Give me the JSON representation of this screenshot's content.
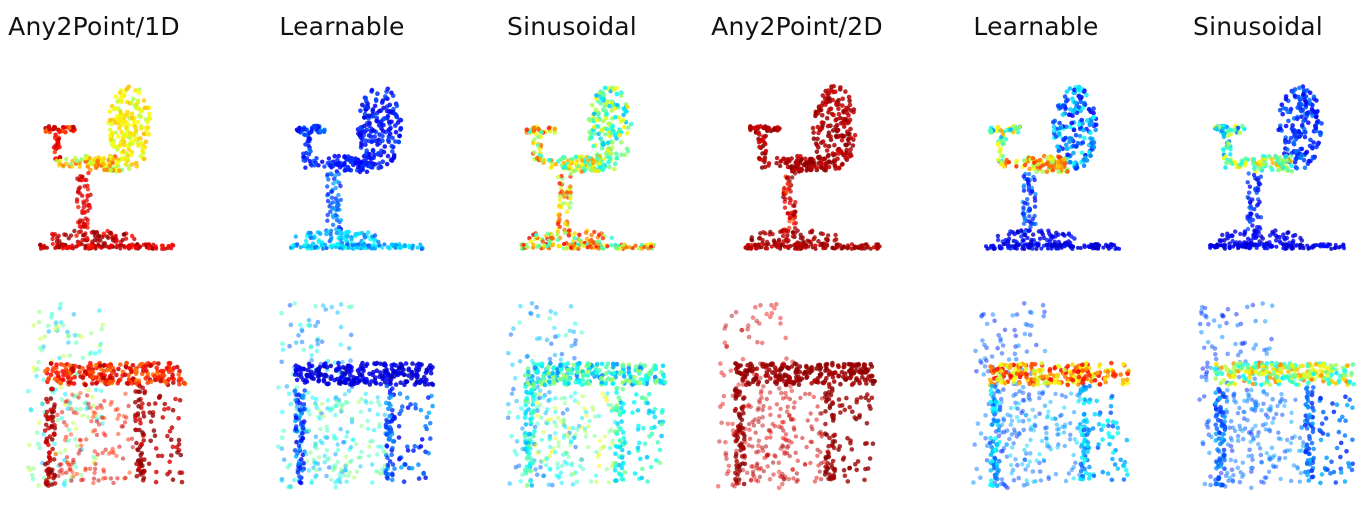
{
  "figure": {
    "columns": [
      {
        "title": "Any2Point/1D",
        "scheme": "warm"
      },
      {
        "title": "Learnable",
        "scheme": "cool"
      },
      {
        "title": "Sinusoidal",
        "scheme": "mixed"
      },
      {
        "title": "Any2Point/2D",
        "scheme": "red"
      },
      {
        "title": "Learnable",
        "scheme": "blue-hot"
      },
      {
        "title": "Sinusoidal",
        "scheme": "deep-blue"
      }
    ],
    "rows": [
      {
        "object": "office-chair"
      },
      {
        "object": "desk-cabinet"
      }
    ],
    "colors": {
      "jet_red": "#d7191c",
      "jet_orange": "#f4a100",
      "jet_yellow": "#ffe600",
      "jet_cyan": "#37d3e6",
      "jet_blue": "#1f3fd6",
      "jet_darkblue": "#10157f"
    }
  }
}
